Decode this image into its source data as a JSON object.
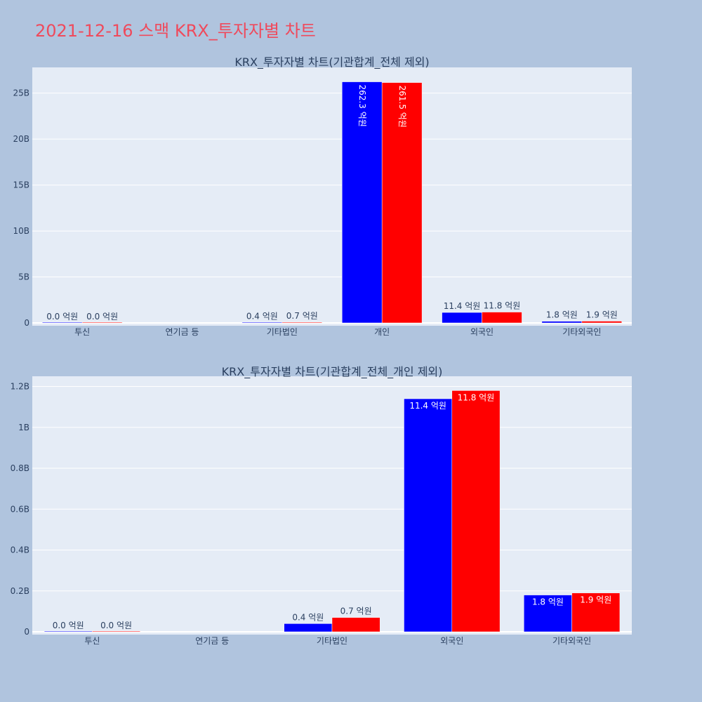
{
  "page": {
    "title": "2021-12-16 스맥 KRX_투자자별 차트"
  },
  "colors": {
    "background": "#b0c4de",
    "plot_bg": "#e5ecf6",
    "series_1": "#0000ff",
    "series_2": "#ff0000",
    "title": "#ef4a5c"
  },
  "chart_data": [
    {
      "type": "bar",
      "title": "KRX_투자자별 차트(기관합계_전체 제외)",
      "categories": [
        "투신",
        "연기금 등",
        "기타법인",
        "개인",
        "외국인",
        "기타외국인"
      ],
      "series": [
        {
          "values": [
            0,
            null,
            40000000,
            26230000000,
            1140000000,
            180000000
          ],
          "labels": [
            "0.0 억원",
            "",
            "0.4 억원",
            "262.3 억원",
            "11.4 억원",
            "1.8 억원"
          ]
        },
        {
          "values": [
            0,
            null,
            70000000,
            26150000000,
            1180000000,
            190000000
          ],
          "labels": [
            "0.0 억원",
            "",
            "0.7 억원",
            "261.5 억원",
            "11.8 억원",
            "1.9 억원"
          ]
        }
      ],
      "yticks": [
        0,
        5000000000,
        10000000000,
        15000000000,
        20000000000,
        25000000000
      ],
      "ytick_labels": [
        "0",
        "5B",
        "10B",
        "15B",
        "20B",
        "25B"
      ],
      "ylim": [
        0,
        27800000000
      ],
      "grid": true
    },
    {
      "type": "bar",
      "title": "KRX_투자자별 차트(기관합계_전체_개인 제외)",
      "categories": [
        "투신",
        "연기금 등",
        "기타법인",
        "외국인",
        "기타외국인"
      ],
      "series": [
        {
          "values": [
            0,
            null,
            40000000,
            1140000000,
            180000000
          ],
          "labels": [
            "0.0 억원",
            "",
            "0.4 억원",
            "11.4 억원",
            "1.8 억원"
          ]
        },
        {
          "values": [
            0,
            null,
            70000000,
            1180000000,
            190000000
          ],
          "labels": [
            "0.0 억원",
            "",
            "0.7 억원",
            "11.8 억원",
            "1.9 억원"
          ]
        }
      ],
      "yticks": [
        0,
        200000000,
        400000000,
        600000000,
        800000000,
        1000000000,
        1200000000
      ],
      "ytick_labels": [
        "0",
        "0.2B",
        "0.4B",
        "0.6B",
        "0.8B",
        "1B",
        "1.2B"
      ],
      "ylim": [
        0,
        1250000000
      ],
      "grid": true
    }
  ]
}
